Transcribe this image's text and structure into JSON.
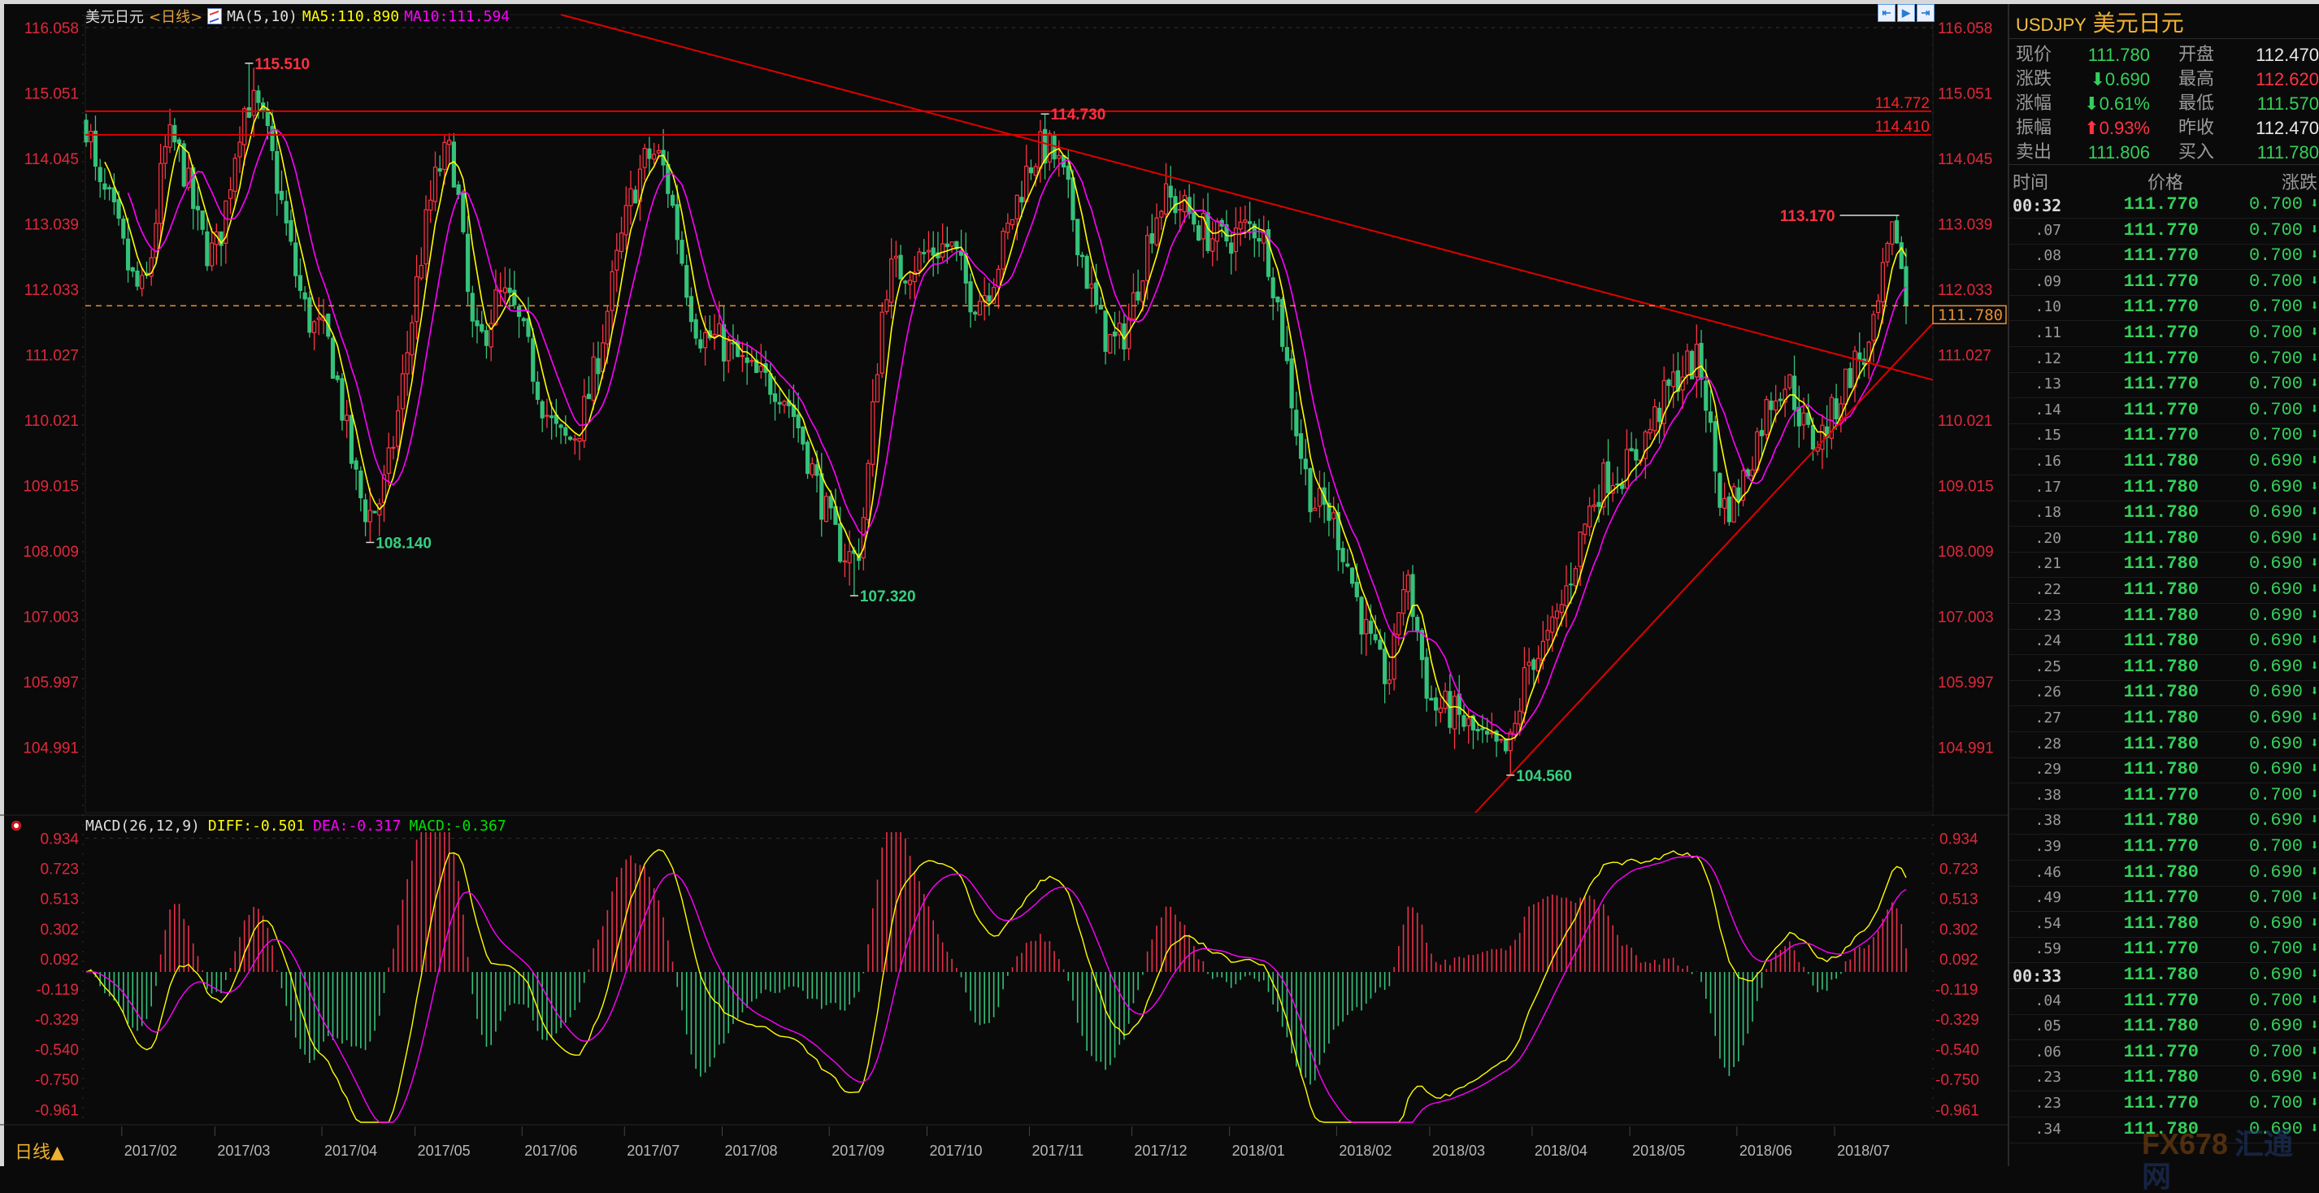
{
  "header": {
    "name": "美元日元",
    "period": "<日线>",
    "ma_label": "MA(5,10)",
    "ma5": "MA5:110.890",
    "ma10": "MA10:111.594"
  },
  "macd_header": {
    "title": "MACD(26,12,9)",
    "diff": "DIFF:-0.501",
    "dea": "DEA:-0.317",
    "macd": "MACD:-0.367"
  },
  "period_button": "日线▲",
  "toolbar_icons": [
    "zoom-left-icon",
    "play-icon",
    "exit-icon"
  ],
  "colors": {
    "up": "#ff3344",
    "down": "#35c27a",
    "ma5": "#ffff00",
    "ma10": "#ff00ff",
    "trendline": "#e00000",
    "current_price": "#e89030",
    "axis_text": "#e0283c"
  },
  "price_axis": {
    "ticks": [
      "116.058",
      "115.051",
      "114.045",
      "113.039",
      "112.033",
      "111.027",
      "110.021",
      "109.015",
      "108.009",
      "107.003",
      "105.997",
      "104.991"
    ]
  },
  "macd_axis": {
    "ticks": [
      "0.934",
      "0.723",
      "0.513",
      "0.302",
      "0.092",
      "-0.119",
      "-0.329",
      "-0.540",
      "-0.750",
      "-0.961"
    ]
  },
  "date_axis": {
    "labels": [
      "2017/02",
      "2017/03",
      "2017/04",
      "2017/05",
      "2017/06",
      "2017/07",
      "2017/08",
      "2017/09",
      "2017/10",
      "2017/11",
      "2017/12",
      "2018/01",
      "2018/02",
      "2018/03",
      "2018/04",
      "2018/05",
      "2018/06",
      "2018/07"
    ]
  },
  "chart_data": {
    "type": "candlestick",
    "start_date": "2017-01-20",
    "end_date": "2018-07-23",
    "close_anchors": [
      [
        "2017-01-20",
        114.6
      ],
      [
        "2017-01-25",
        113.5
      ],
      [
        "2017-02-07",
        112.0
      ],
      [
        "2017-02-15",
        114.3
      ],
      [
        "2017-02-28",
        112.6
      ],
      [
        "2017-03-10",
        114.9
      ],
      [
        "2017-03-31",
        111.4
      ],
      [
        "2017-04-17",
        108.6
      ],
      [
        "2017-05-10",
        114.1
      ],
      [
        "2017-05-18",
        111.2
      ],
      [
        "2017-05-25",
        111.9
      ],
      [
        "2017-06-14",
        109.7
      ],
      [
        "2017-07-11",
        114.1
      ],
      [
        "2017-07-26",
        111.3
      ],
      [
        "2017-08-15",
        110.6
      ],
      [
        "2017-09-08",
        107.9
      ],
      [
        "2017-09-20",
        112.3
      ],
      [
        "2017-10-06",
        112.7
      ],
      [
        "2017-10-16",
        111.9
      ],
      [
        "2017-11-06",
        114.2
      ],
      [
        "2017-11-27",
        111.2
      ],
      [
        "2017-12-12",
        113.4
      ],
      [
        "2017-12-28",
        112.8
      ],
      [
        "2018-01-08",
        113.0
      ],
      [
        "2018-01-26",
        108.7
      ],
      [
        "2018-02-16",
        106.1
      ],
      [
        "2018-02-21",
        107.5
      ],
      [
        "2018-03-02",
        105.6
      ],
      [
        "2018-03-23",
        104.9
      ],
      [
        "2018-04-02",
        106.4
      ],
      [
        "2018-04-25",
        109.2
      ],
      [
        "2018-05-21",
        110.9
      ],
      [
        "2018-05-29",
        108.7
      ],
      [
        "2018-06-15",
        110.6
      ],
      [
        "2018-06-25",
        109.7
      ],
      [
        "2018-07-10",
        111.0
      ],
      [
        "2018-07-19",
        112.9
      ],
      [
        "2018-07-23",
        111.78
      ]
    ],
    "extremes": [
      {
        "date": "2017-03-10",
        "type": "high",
        "value": "115.510"
      },
      {
        "date": "2017-04-17",
        "type": "low",
        "value": "108.140"
      },
      {
        "date": "2017-09-08",
        "type": "low",
        "value": "107.320"
      },
      {
        "date": "2017-11-06",
        "type": "high",
        "value": "114.730"
      },
      {
        "date": "2018-03-26",
        "type": "low",
        "value": "104.560"
      },
      {
        "date": "2018-07-19",
        "type": "high",
        "value": "113.170"
      }
    ],
    "horizontal_lines": [
      "114.772",
      "114.410"
    ],
    "trend_lines": [
      {
        "from": [
          "2017-06-30",
          116.01
        ],
        "to": [
          "2018-07-23",
          110.75
        ]
      },
      {
        "from": [
          "2018-03-26",
          104.56
        ],
        "to": [
          "2018-07-23",
          111.07
        ]
      }
    ],
    "current_price": "111.780",
    "indicators": {
      "ma": [
        5,
        10
      ],
      "macd": [
        26,
        12,
        9
      ]
    }
  },
  "quote": {
    "code": "USDJPY",
    "name": "美元日元",
    "rows": [
      {
        "l1": "现价",
        "v1": "111.780",
        "c1": "g",
        "l2": "开盘",
        "v2": "112.470",
        "c2": "w"
      },
      {
        "l1": "涨跌",
        "v1": "⬇0.690",
        "c1": "g",
        "l2": "最高",
        "v2": "112.620",
        "c2": "r"
      },
      {
        "l1": "涨幅",
        "v1": "⬇0.61%",
        "c1": "g",
        "l2": "最低",
        "v2": "111.570",
        "c2": "g"
      },
      {
        "l1": "振幅",
        "v1": "⬆0.93%",
        "c1": "r",
        "l2": "昨收",
        "v2": "112.470",
        "c2": "w"
      },
      {
        "l1": "卖出",
        "v1": "111.806",
        "c1": "g",
        "l2": "买入",
        "v2": "111.780",
        "c2": "g"
      }
    ],
    "columns": {
      "time": "时间",
      "price": "价格",
      "change": "涨跌"
    },
    "ticks": [
      [
        "00:32",
        "111.770",
        "0.700"
      ],
      [
        ".07",
        "111.770",
        "0.700"
      ],
      [
        ".08",
        "111.770",
        "0.700"
      ],
      [
        ".09",
        "111.770",
        "0.700"
      ],
      [
        ".10",
        "111.770",
        "0.700"
      ],
      [
        ".11",
        "111.770",
        "0.700"
      ],
      [
        ".12",
        "111.770",
        "0.700"
      ],
      [
        ".13",
        "111.770",
        "0.700"
      ],
      [
        ".14",
        "111.770",
        "0.700"
      ],
      [
        ".15",
        "111.770",
        "0.700"
      ],
      [
        ".16",
        "111.780",
        "0.690"
      ],
      [
        ".17",
        "111.780",
        "0.690"
      ],
      [
        ".18",
        "111.780",
        "0.690"
      ],
      [
        ".20",
        "111.780",
        "0.690"
      ],
      [
        ".21",
        "111.780",
        "0.690"
      ],
      [
        ".22",
        "111.780",
        "0.690"
      ],
      [
        ".23",
        "111.780",
        "0.690"
      ],
      [
        ".24",
        "111.780",
        "0.690"
      ],
      [
        ".25",
        "111.780",
        "0.690"
      ],
      [
        ".26",
        "111.780",
        "0.690"
      ],
      [
        ".27",
        "111.780",
        "0.690"
      ],
      [
        ".28",
        "111.780",
        "0.690"
      ],
      [
        ".29",
        "111.780",
        "0.690"
      ],
      [
        ".38",
        "111.770",
        "0.700"
      ],
      [
        ".38",
        "111.780",
        "0.690"
      ],
      [
        ".39",
        "111.770",
        "0.700"
      ],
      [
        ".46",
        "111.780",
        "0.690"
      ],
      [
        ".49",
        "111.770",
        "0.700"
      ],
      [
        ".54",
        "111.780",
        "0.690"
      ],
      [
        ".59",
        "111.770",
        "0.700"
      ],
      [
        "00:33",
        "111.780",
        "0.690"
      ],
      [
        ".04",
        "111.770",
        "0.700"
      ],
      [
        ".05",
        "111.780",
        "0.690"
      ],
      [
        ".06",
        "111.770",
        "0.700"
      ],
      [
        ".23",
        "111.780",
        "0.690"
      ],
      [
        ".23",
        "111.770",
        "0.700"
      ],
      [
        ".34",
        "111.780",
        "0.690"
      ]
    ]
  },
  "watermark": {
    "brand": "FX678",
    "cn": "汇通网"
  }
}
